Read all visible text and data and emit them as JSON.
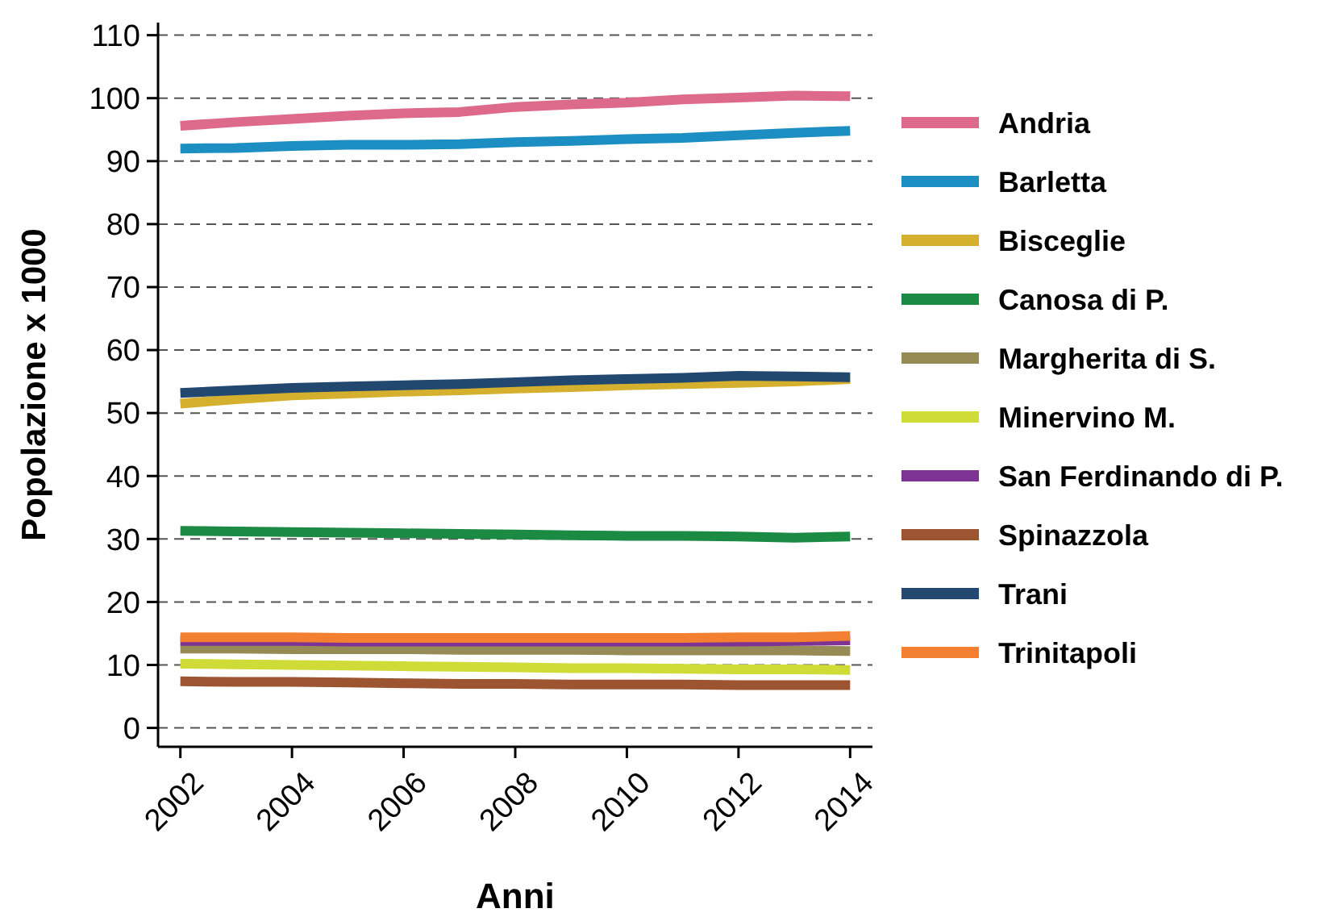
{
  "chart_data": {
    "type": "line",
    "xlabel": "Anni",
    "ylabel": "Popolazione x 1000",
    "x": [
      2002,
      2003,
      2004,
      2005,
      2006,
      2007,
      2008,
      2009,
      2010,
      2011,
      2012,
      2013,
      2014
    ],
    "xlim": [
      2001.6,
      2014.4
    ],
    "xticks": [
      2002,
      2004,
      2006,
      2008,
      2010,
      2012,
      2014
    ],
    "ylim": [
      -3,
      112
    ],
    "yticks": [
      0,
      10,
      20,
      30,
      40,
      50,
      60,
      70,
      80,
      90,
      100,
      110
    ],
    "grid": "y",
    "legend": "right",
    "marker": "none",
    "line_style": "solid",
    "series": [
      {
        "name": "Andria",
        "color": "#dd6a8a",
        "values": [
          95.6,
          96.2,
          96.7,
          97.2,
          97.6,
          97.8,
          98.6,
          99.0,
          99.3,
          99.8,
          100.1,
          100.4,
          100.3
        ]
      },
      {
        "name": "Barletta",
        "color": "#1c8ec2",
        "values": [
          92.0,
          92.1,
          92.4,
          92.6,
          92.6,
          92.7,
          93.0,
          93.2,
          93.5,
          93.7,
          94.1,
          94.5,
          94.8
        ]
      },
      {
        "name": "Bisceglie",
        "color": "#d4b02e",
        "values": [
          51.5,
          52.2,
          52.8,
          53.1,
          53.4,
          53.6,
          53.9,
          54.1,
          54.4,
          54.6,
          54.8,
          55.0,
          55.4
        ]
      },
      {
        "name": "Canosa di P.",
        "color": "#1b8a43",
        "values": [
          31.3,
          31.2,
          31.1,
          31.0,
          30.9,
          30.8,
          30.7,
          30.6,
          30.5,
          30.5,
          30.4,
          30.2,
          30.4
        ]
      },
      {
        "name": "Margherita di S.",
        "color": "#968a55",
        "values": [
          12.6,
          12.6,
          12.5,
          12.5,
          12.5,
          12.4,
          12.4,
          12.4,
          12.3,
          12.3,
          12.3,
          12.3,
          12.2
        ]
      },
      {
        "name": "Minervino M.",
        "color": "#cfdb36",
        "values": [
          10.2,
          10.1,
          10.0,
          9.9,
          9.8,
          9.7,
          9.6,
          9.5,
          9.5,
          9.4,
          9.3,
          9.3,
          9.2
        ]
      },
      {
        "name": "San Ferdinando di P.",
        "color": "#7e3394",
        "values": [
          13.8,
          13.8,
          13.8,
          13.7,
          13.7,
          13.7,
          13.7,
          13.7,
          13.7,
          13.7,
          13.7,
          13.8,
          13.9
        ]
      },
      {
        "name": "Spinazzola",
        "color": "#9c5431",
        "values": [
          7.4,
          7.3,
          7.3,
          7.2,
          7.1,
          7.0,
          7.0,
          6.9,
          6.9,
          6.9,
          6.8,
          6.8,
          6.8
        ]
      },
      {
        "name": "Trani",
        "color": "#22486f",
        "values": [
          53.2,
          53.6,
          54.0,
          54.2,
          54.4,
          54.6,
          54.9,
          55.2,
          55.4,
          55.6,
          55.9,
          55.8,
          55.7
        ]
      },
      {
        "name": "Trinitapoli",
        "color": "#f28030",
        "values": [
          14.4,
          14.4,
          14.4,
          14.3,
          14.3,
          14.3,
          14.3,
          14.3,
          14.3,
          14.3,
          14.4,
          14.4,
          14.6
        ]
      }
    ]
  }
}
